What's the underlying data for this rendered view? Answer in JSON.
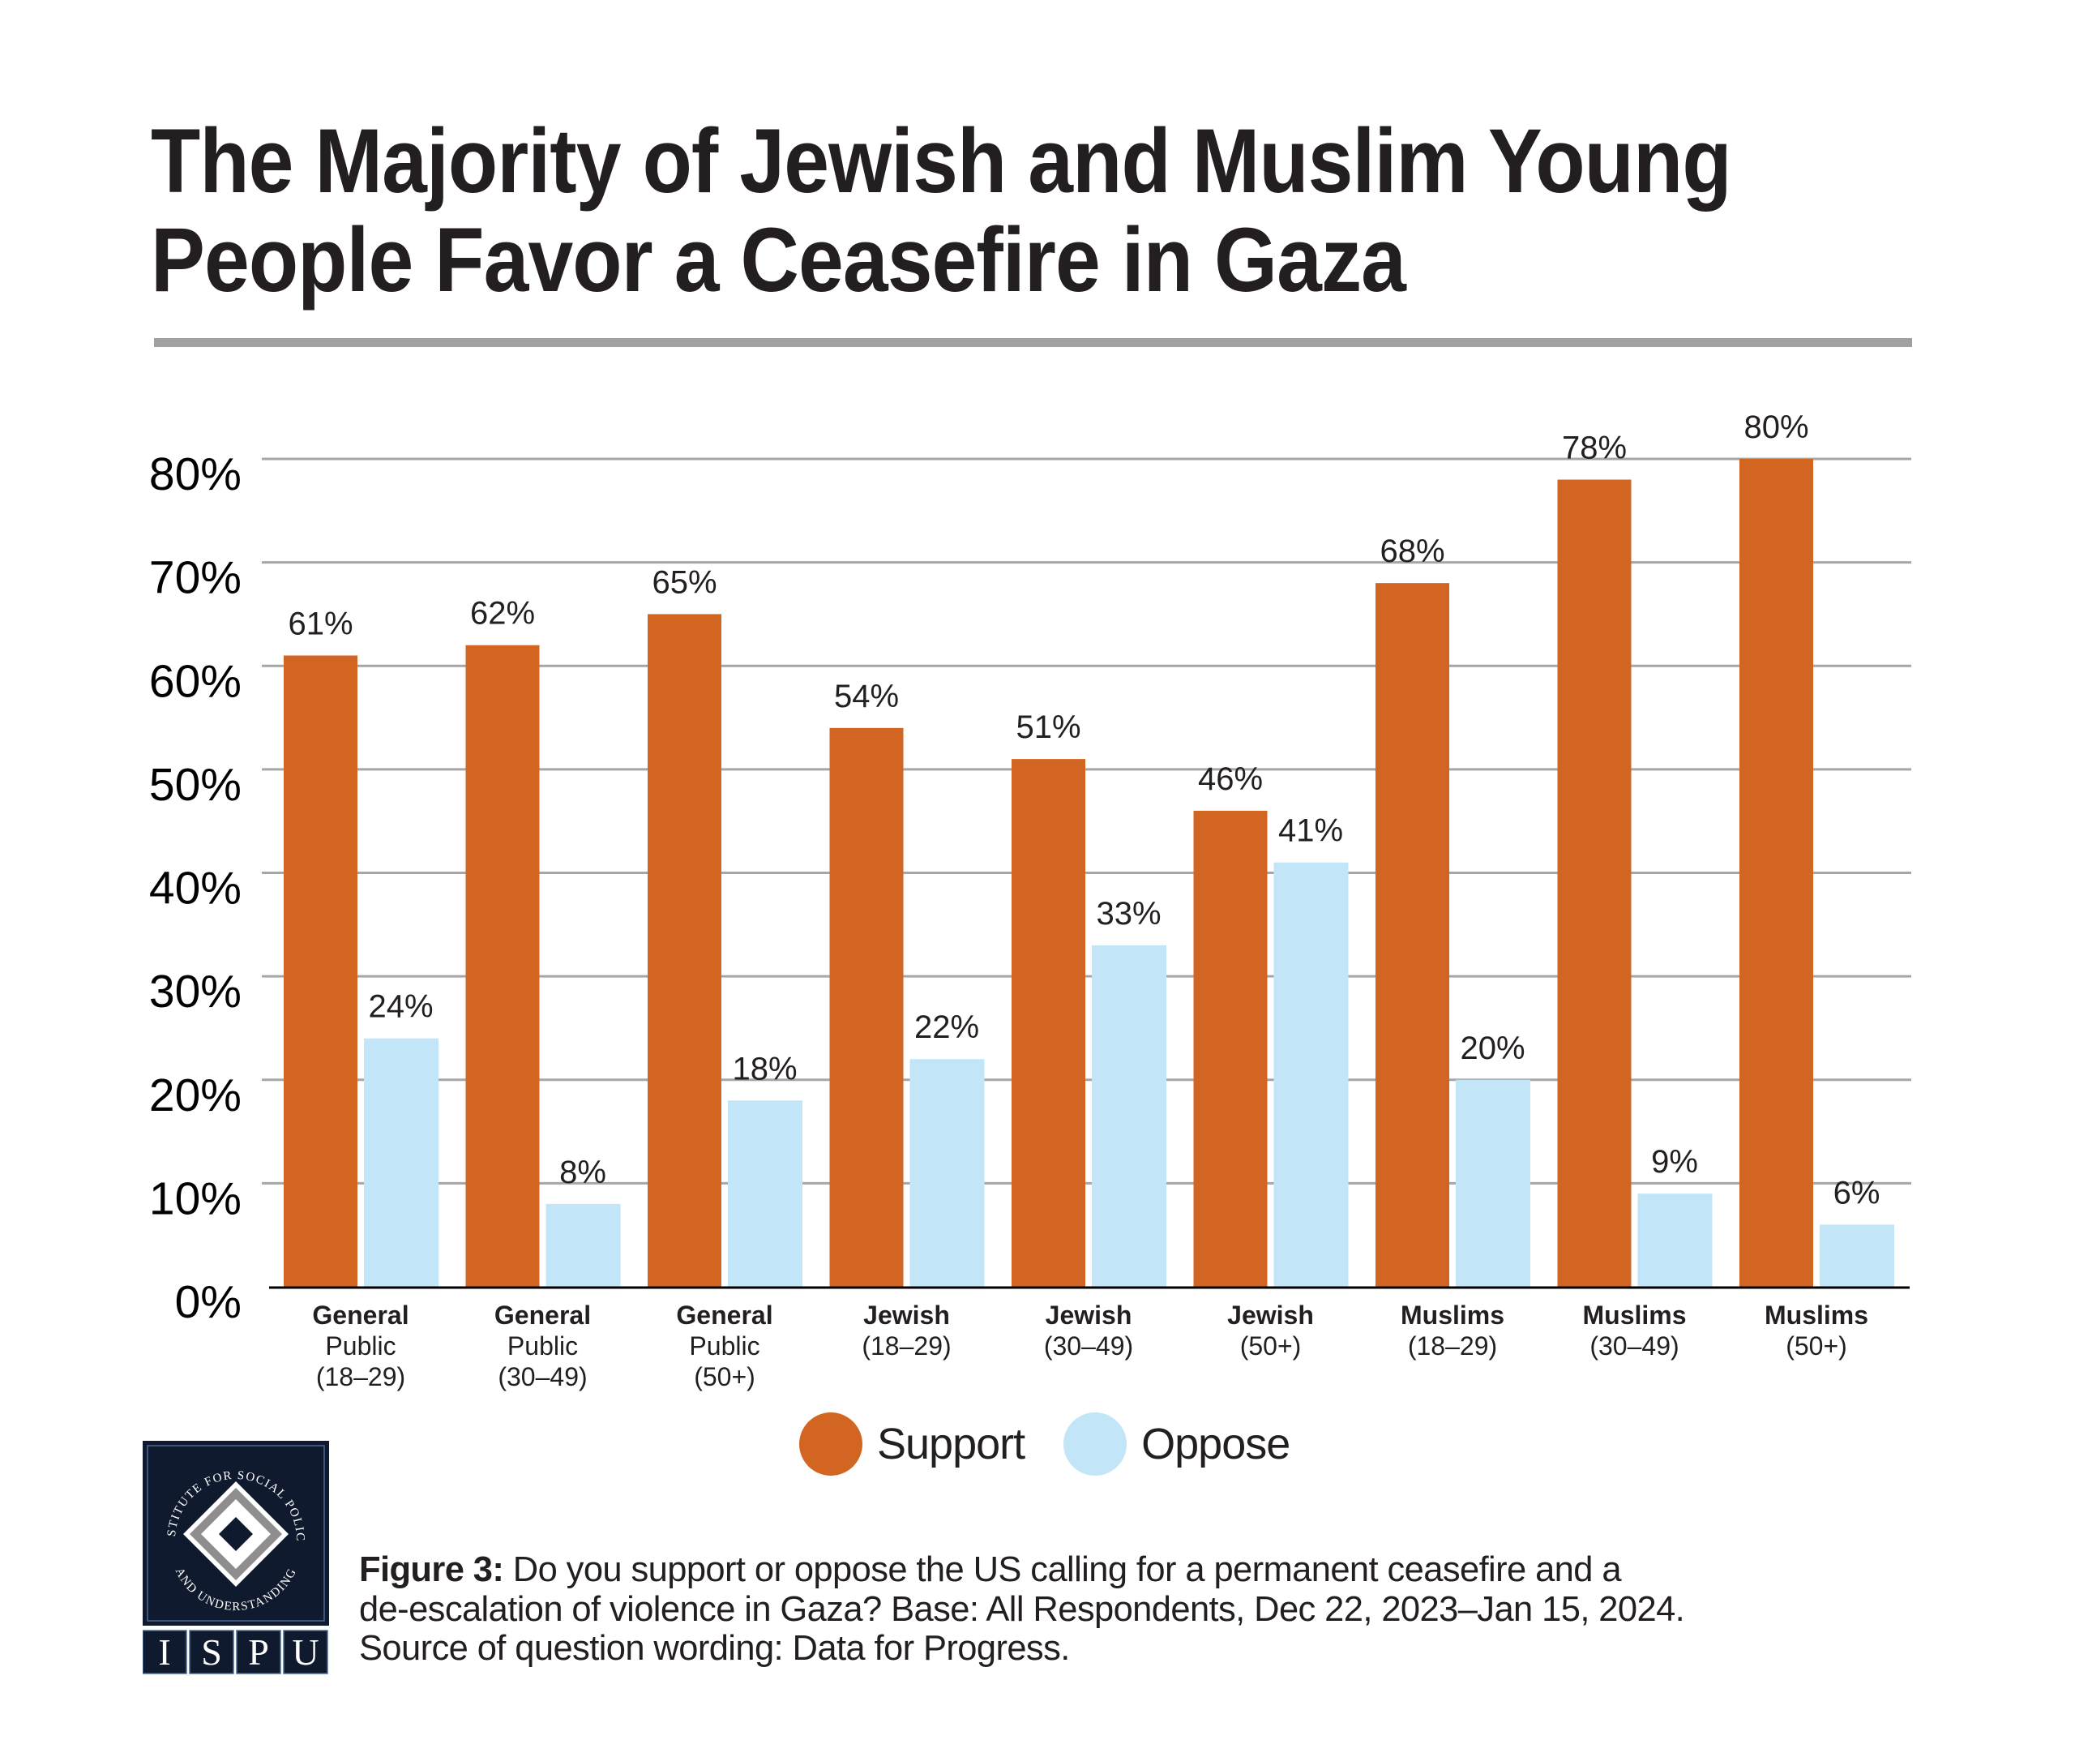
{
  "title": {
    "line1": "The Majority of Jewish and Muslim Young",
    "line2": "People Favor a Ceasefire in Gaza"
  },
  "colors": {
    "support": "#D36523",
    "oppose": "#C2E6F8",
    "gridline": "#a6a6a6",
    "axis": "#000000",
    "title_rule": "#a0a0a2",
    "logo_navy": "#0F1A2E",
    "logo_gray": "#8E8E8E"
  },
  "chart_data": {
    "type": "bar",
    "title": "The Majority of Jewish and Muslim Young People Favor a Ceasefire in Gaza",
    "xlabel": "",
    "ylabel": "",
    "ylim": [
      0,
      80
    ],
    "yticks": [
      0,
      10,
      20,
      30,
      40,
      50,
      60,
      70,
      80
    ],
    "ytick_labels": [
      "0%",
      "10%",
      "20%",
      "30%",
      "40%",
      "50%",
      "60%",
      "70%",
      "80%"
    ],
    "grid": true,
    "legend_position": "bottom-center",
    "categories": [
      [
        "General",
        "Public",
        "(18–29)"
      ],
      [
        "General",
        "Public",
        "(30–49)"
      ],
      [
        "General",
        "Public",
        "(50+)"
      ],
      [
        "Jewish",
        "(18–29)"
      ],
      [
        "Jewish",
        "(30–49)"
      ],
      [
        "Jewish",
        "(50+)"
      ],
      [
        "Muslims",
        "(18–29)"
      ],
      [
        "Muslims",
        "(30–49)"
      ],
      [
        "Muslims",
        "(50+)"
      ]
    ],
    "series": [
      {
        "name": "Support",
        "color": "#D36523",
        "values": [
          61,
          62,
          65,
          54,
          51,
          46,
          68,
          78,
          80
        ]
      },
      {
        "name": "Oppose",
        "color": "#C2E6F8",
        "values": [
          24,
          8,
          18,
          22,
          33,
          41,
          20,
          9,
          6
        ]
      }
    ],
    "value_suffix": "%"
  },
  "legend": {
    "items": [
      {
        "label": "Support",
        "color": "#D36523"
      },
      {
        "label": "Oppose",
        "color": "#C2E6F8"
      }
    ]
  },
  "logo": {
    "ring_text_top": "INSTITUTE FOR SOCIAL POLICY",
    "ring_text_bottom": "AND UNDERSTANDING",
    "letters": [
      "I",
      "S",
      "P",
      "U"
    ]
  },
  "caption": {
    "figure_label": "Figure 3:",
    "line1": " Do you support or oppose the US calling for a permanent ceasefire and a",
    "line2": "de-escalation of violence in Gaza? Base: All Respondents, Dec 22, 2023–Jan 15, 2024.",
    "line3": "Source of question wording: Data for Progress."
  }
}
